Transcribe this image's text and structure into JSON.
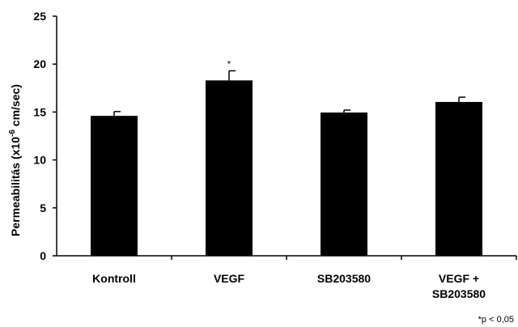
{
  "chart_data": {
    "type": "bar",
    "categories": [
      "Kontroll",
      "VEGF",
      "SB203580",
      "VEGF +\nSB203580"
    ],
    "values": [
      14.6,
      18.3,
      14.95,
      16.05
    ],
    "errors": [
      0.45,
      1.0,
      0.25,
      0.5
    ],
    "significance": [
      "",
      "*",
      "",
      ""
    ],
    "ylabel_prefix": "Permeabilitás (x10",
    "ylabel_exponent": "-6",
    "ylabel_suffix": " cm/sec)",
    "ylim": [
      0,
      25
    ],
    "yticks": [
      0,
      5,
      10,
      15,
      20,
      25
    ],
    "bar_color": "#000000",
    "footnote": "*p < 0,05"
  }
}
